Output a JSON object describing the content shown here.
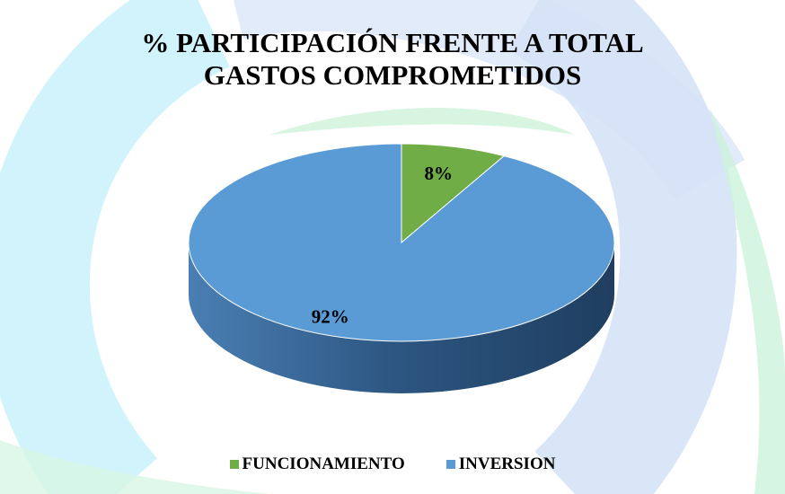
{
  "chart_data": {
    "type": "pie",
    "title": "% PARTICIPACIÓN FRENTE A TOTAL GASTOS COMPROMETIDOS",
    "categories": [
      "FUNCIONAMIENTO",
      "INVERSION"
    ],
    "values": [
      8,
      92
    ],
    "value_labels": [
      "8%",
      "92%"
    ],
    "colors": [
      "#70ad47",
      "#5b9bd5"
    ],
    "legend": "bottom"
  }
}
